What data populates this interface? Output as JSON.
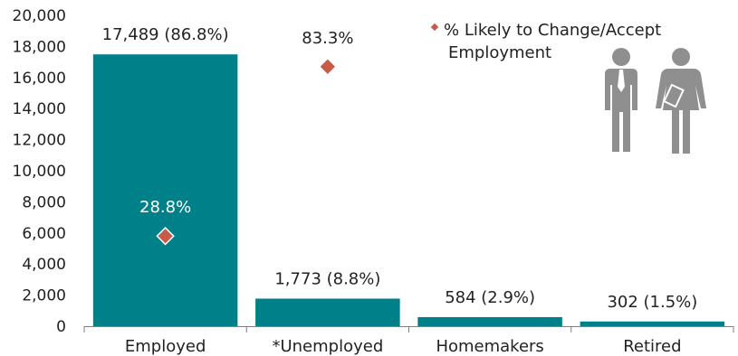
{
  "chart_data": {
    "type": "bar",
    "categories": [
      "Employed",
      "*Unemployed",
      "Homemakers",
      "Retired"
    ],
    "values": [
      17489,
      1773,
      584,
      302
    ],
    "bar_labels": [
      "17,489 (86.8%)",
      "1,773 (8.8%)",
      "584 (2.9%)",
      "302 (1.5%)"
    ],
    "ylim": [
      0,
      20000
    ],
    "yticks": [
      "0",
      "2,000",
      "4,000",
      "6,000",
      "8,000",
      "10,000",
      "12,000",
      "14,000",
      "16,000",
      "18,000",
      "20,000"
    ],
    "series": [
      {
        "name": "% Likely to Change/Accept Employment",
        "type": "scatter",
        "points": [
          {
            "category": "Employed",
            "y": 5800,
            "label": "28.8%"
          },
          {
            "category": "*Unemployed",
            "y": 16700,
            "label": "83.3%"
          }
        ]
      }
    ],
    "legend": {
      "line1": "% Likely to Change/Accept",
      "line2": "Employment",
      "position": "top-right"
    },
    "grid": false
  },
  "colors": {
    "bar": "#00818A",
    "marker": "#C65B47",
    "marker_stroke": "#ffffff",
    "axis": "#7f7f7f",
    "text": "#222222",
    "label_on_bar": "#ffffff",
    "icon": "#8f8f8f"
  },
  "icons": [
    "people-icon"
  ]
}
